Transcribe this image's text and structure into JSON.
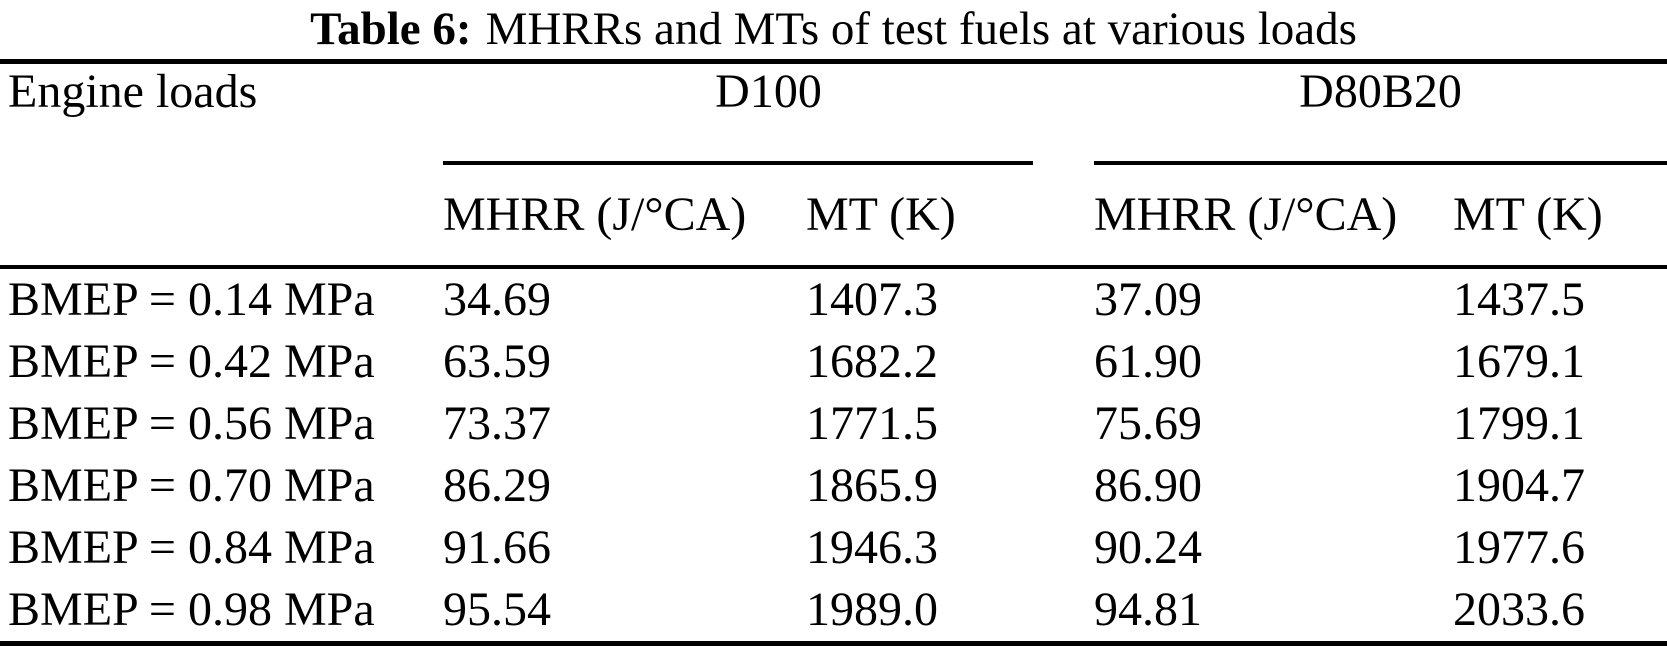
{
  "caption": {
    "label": "Table 6:",
    "text": "MHRRs and MTs of test fuels at various loads"
  },
  "table": {
    "corner_header": "Engine loads",
    "groups": [
      {
        "name": "D100"
      },
      {
        "name": "D80B20"
      }
    ],
    "subheaders": [
      "MHRR (J/°CA)",
      "MT (K)",
      "MHRR (J/°CA)",
      "MT (K)"
    ],
    "rows": [
      {
        "load": "BMEP = 0.14 MPa",
        "values": [
          "34.69",
          "1407.3",
          "37.09",
          "1437.5"
        ]
      },
      {
        "load": "BMEP = 0.42 MPa",
        "values": [
          "63.59",
          "1682.2",
          "61.90",
          "1679.1"
        ]
      },
      {
        "load": "BMEP = 0.56 MPa",
        "values": [
          "73.37",
          "1771.5",
          "75.69",
          "1799.1"
        ]
      },
      {
        "load": "BMEP = 0.70 MPa",
        "values": [
          "86.29",
          "1865.9",
          "86.90",
          "1904.7"
        ]
      },
      {
        "load": "BMEP = 0.84 MPa",
        "values": [
          "91.66",
          "1946.3",
          "90.24",
          "1977.6"
        ]
      },
      {
        "load": "BMEP = 0.98 MPa",
        "values": [
          "95.54",
          "1989.0",
          "94.81",
          "2033.6"
        ]
      }
    ]
  }
}
